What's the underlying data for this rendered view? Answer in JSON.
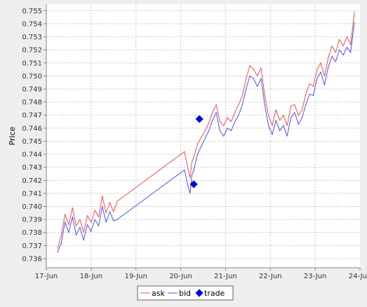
{
  "chart_data": {
    "type": "line",
    "title": "",
    "xlabel": "",
    "ylabel": "Price",
    "x_tick_labels": [
      "17-Jun",
      "18-Jun",
      "19-Jun",
      "20-Jun",
      "21-Jun",
      "22-Jun",
      "23-Jun",
      "24-Jun"
    ],
    "y_tick_labels": [
      "0.736",
      "0.737",
      "0.738",
      "0.739",
      "0.740",
      "0.741",
      "0.742",
      "0.743",
      "0.744",
      "0.745",
      "0.746",
      "0.747",
      "0.748",
      "0.749",
      "0.750",
      "0.751",
      "0.752",
      "0.753",
      "0.754",
      "0.755"
    ],
    "xlim": [
      "17-Jun 00:00",
      "24-Jun 00:00"
    ],
    "ylim": [
      0.7353,
      0.7555
    ],
    "grid": true,
    "legend_position": "bottom-center",
    "colors": {
      "ask": "#f05050",
      "bid": "#5050f0",
      "trade": "#0000ff"
    },
    "series": [
      {
        "name": "ask",
        "x": [
          "17-Jun 06:00",
          "17-Jun 08:00",
          "17-Jun 10:00",
          "17-Jun 12:00",
          "17-Jun 14:00",
          "17-Jun 16:00",
          "17-Jun 18:00",
          "17-Jun 20:00",
          "17-Jun 22:00",
          "18-Jun 00:00",
          "18-Jun 02:00",
          "18-Jun 04:00",
          "18-Jun 06:00",
          "18-Jun 08:00",
          "18-Jun 10:00",
          "18-Jun 12:00",
          "18-Jun 14:00",
          "20-Jun 02:00",
          "20-Jun 04:00",
          "20-Jun 05:00",
          "20-Jun 06:00",
          "20-Jun 07:00",
          "20-Jun 09:00",
          "20-Jun 11:00",
          "20-Jun 13:00",
          "20-Jun 15:00",
          "20-Jun 17:00",
          "20-Jun 19:00",
          "20-Jun 21:00",
          "20-Jun 23:00",
          "21-Jun 01:00",
          "21-Jun 03:00",
          "21-Jun 05:00",
          "21-Jun 07:00",
          "21-Jun 09:00",
          "21-Jun 11:00",
          "21-Jun 13:00",
          "21-Jun 15:00",
          "21-Jun 17:00",
          "21-Jun 19:00",
          "21-Jun 21:00",
          "21-Jun 23:00",
          "22-Jun 01:00",
          "22-Jun 03:00",
          "22-Jun 05:00",
          "22-Jun 07:00",
          "22-Jun 09:00",
          "22-Jun 11:00",
          "22-Jun 13:00",
          "22-Jun 15:00",
          "22-Jun 17:00",
          "22-Jun 19:00",
          "22-Jun 21:00",
          "22-Jun 23:00",
          "23-Jun 01:00",
          "23-Jun 03:00",
          "23-Jun 05:00",
          "23-Jun 07:00",
          "23-Jun 09:00",
          "23-Jun 11:00",
          "23-Jun 13:00",
          "23-Jun 15:00",
          "23-Jun 17:00",
          "23-Jun 19:00",
          "23-Jun 21:00"
        ],
        "values": [
          0.7368,
          0.7378,
          0.7394,
          0.7386,
          0.7399,
          0.7385,
          0.739,
          0.738,
          0.7393,
          0.7388,
          0.7397,
          0.7392,
          0.7408,
          0.7395,
          0.7403,
          0.7396,
          0.7404,
          0.7442,
          0.7428,
          0.7422,
          0.7434,
          0.7438,
          0.7448,
          0.7453,
          0.7458,
          0.7464,
          0.7472,
          0.7478,
          0.7465,
          0.7462,
          0.7468,
          0.7465,
          0.7472,
          0.7478,
          0.7485,
          0.7498,
          0.7508,
          0.7505,
          0.75,
          0.7506,
          0.7485,
          0.747,
          0.7462,
          0.7474,
          0.7466,
          0.747,
          0.7462,
          0.7477,
          0.7478,
          0.747,
          0.7474,
          0.7486,
          0.7494,
          0.7492,
          0.7505,
          0.751,
          0.75,
          0.7514,
          0.7523,
          0.7518,
          0.7528,
          0.7523,
          0.753,
          0.7524,
          0.7549
        ]
      },
      {
        "name": "bid",
        "x": [
          "17-Jun 06:00",
          "17-Jun 08:00",
          "17-Jun 10:00",
          "17-Jun 12:00",
          "17-Jun 14:00",
          "17-Jun 16:00",
          "17-Jun 18:00",
          "17-Jun 20:00",
          "17-Jun 22:00",
          "18-Jun 00:00",
          "18-Jun 02:00",
          "18-Jun 04:00",
          "18-Jun 06:00",
          "18-Jun 08:00",
          "18-Jun 10:00",
          "18-Jun 12:00",
          "18-Jun 14:00",
          "20-Jun 02:00",
          "20-Jun 04:00",
          "20-Jun 05:00",
          "20-Jun 06:00",
          "20-Jun 07:00",
          "20-Jun 09:00",
          "20-Jun 11:00",
          "20-Jun 13:00",
          "20-Jun 15:00",
          "20-Jun 17:00",
          "20-Jun 19:00",
          "20-Jun 21:00",
          "20-Jun 23:00",
          "21-Jun 01:00",
          "21-Jun 03:00",
          "21-Jun 05:00",
          "21-Jun 07:00",
          "21-Jun 09:00",
          "21-Jun 11:00",
          "21-Jun 13:00",
          "21-Jun 15:00",
          "21-Jun 17:00",
          "21-Jun 19:00",
          "21-Jun 21:00",
          "21-Jun 23:00",
          "22-Jun 01:00",
          "22-Jun 03:00",
          "22-Jun 05:00",
          "22-Jun 07:00",
          "22-Jun 09:00",
          "22-Jun 11:00",
          "22-Jun 13:00",
          "22-Jun 15:00",
          "22-Jun 17:00",
          "22-Jun 19:00",
          "22-Jun 21:00",
          "22-Jun 23:00",
          "23-Jun 01:00",
          "23-Jun 03:00",
          "23-Jun 05:00",
          "23-Jun 07:00",
          "23-Jun 09:00",
          "23-Jun 11:00",
          "23-Jun 13:00",
          "23-Jun 15:00",
          "23-Jun 17:00",
          "23-Jun 19:00",
          "23-Jun 21:00"
        ],
        "values": [
          0.7365,
          0.7372,
          0.7388,
          0.738,
          0.7392,
          0.7378,
          0.7384,
          0.7374,
          0.7386,
          0.7381,
          0.739,
          0.7385,
          0.74,
          0.7388,
          0.7396,
          0.7389,
          0.739,
          0.7428,
          0.7415,
          0.741,
          0.7424,
          0.7428,
          0.744,
          0.7446,
          0.7452,
          0.7458,
          0.7466,
          0.7472,
          0.7458,
          0.7454,
          0.746,
          0.7458,
          0.7465,
          0.747,
          0.7478,
          0.749,
          0.75,
          0.7498,
          0.7492,
          0.7498,
          0.7478,
          0.7462,
          0.7455,
          0.7466,
          0.7458,
          0.7462,
          0.7454,
          0.7468,
          0.7472,
          0.7463,
          0.7468,
          0.7478,
          0.7486,
          0.7485,
          0.7498,
          0.7503,
          0.7493,
          0.7507,
          0.7515,
          0.7511,
          0.752,
          0.7516,
          0.7522,
          0.7518,
          0.7541
        ]
      },
      {
        "name": "trade",
        "x": [
          "20-Jun 07:00",
          "20-Jun 10:00"
        ],
        "values": [
          0.7417,
          0.7467
        ]
      }
    ]
  }
}
